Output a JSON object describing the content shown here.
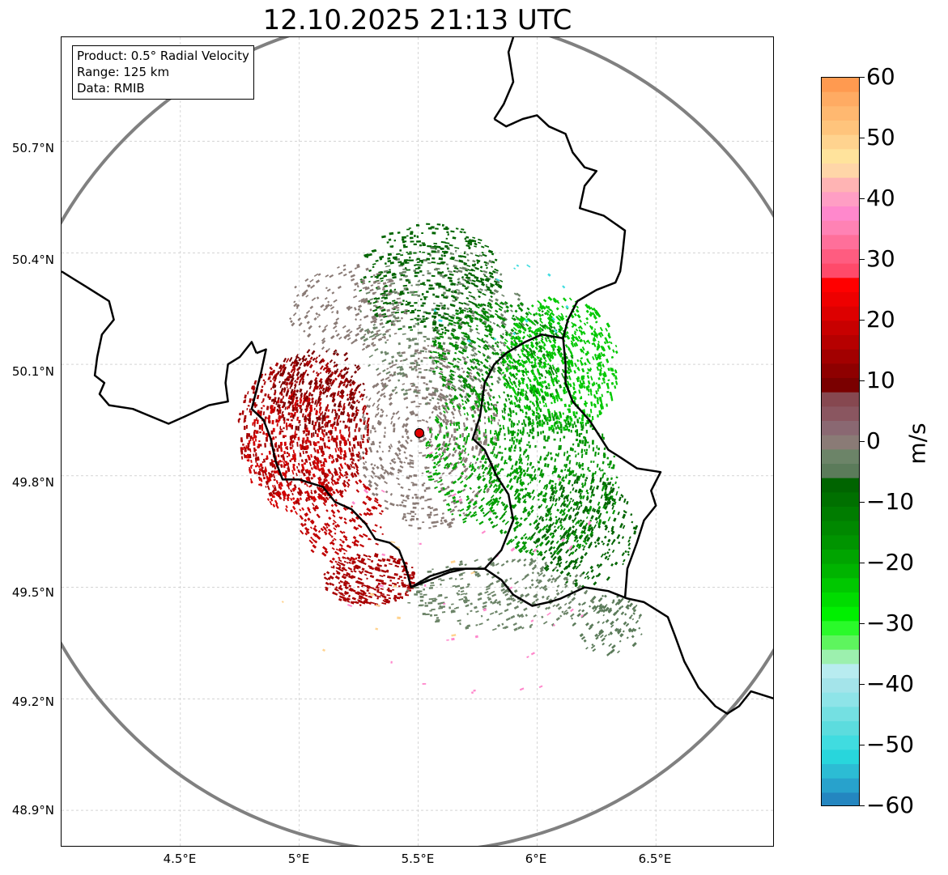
{
  "title": "12.10.2025 21:13 UTC",
  "info": {
    "product": "Product: 0.5° Radial Velocity",
    "range": "Range: 125 km",
    "data": "Data: RMIB"
  },
  "lat_labels": [
    "50.7°N",
    "50.4°N",
    "50.1°N",
    "49.8°N",
    "49.5°N",
    "49.2°N",
    "48.9°N"
  ],
  "lon_labels": [
    "4.5°E",
    "5°E",
    "5.5°E",
    "6°E",
    "6.5°E"
  ],
  "colorbar": {
    "unit": "m/s",
    "tick_labels": [
      "60",
      "50",
      "40",
      "30",
      "20",
      "10",
      "0",
      "−10",
      "−20",
      "−30",
      "−40",
      "−50",
      "−60"
    ],
    "vmin": -60,
    "vmax": 60,
    "band_colors": [
      "#ff9a50",
      "#ffab63",
      "#ffb870",
      "#ffc47c",
      "#ffd38f",
      "#ffe39c",
      "#ffd6a8",
      "#ffb4b4",
      "#ff9ec4",
      "#ff88cc",
      "#ff82b4",
      "#ff6f9a",
      "#ff5c80",
      "#ff4a6a",
      "#ff0000",
      "#ee0000",
      "#dd0000",
      "#c80000",
      "#b60000",
      "#a20000",
      "#8e0000",
      "#7a0000",
      "#864850",
      "#8a5660",
      "#8a6872",
      "#8a7b76",
      "#6c8468",
      "#5b7b5a",
      "#006400",
      "#007000",
      "#007c00",
      "#008800",
      "#009400",
      "#00a400",
      "#00b400",
      "#00c800",
      "#00dc00",
      "#00f000",
      "#2afa2a",
      "#5ef55e",
      "#9cf0ae",
      "#b8ecf0",
      "#a4e4ea",
      "#8ee4e8",
      "#74e0e2",
      "#5cdcde",
      "#40dce0",
      "#28d6dc",
      "#2cbcd4",
      "#28a2cc",
      "#2486c0"
    ]
  },
  "map_data": {
    "lon_range": [
      4.0,
      7.0
    ],
    "lat_range": [
      48.8,
      50.98
    ],
    "radar_site": {
      "lon": 5.505,
      "lat": 49.915
    },
    "range_ring_km": 125,
    "gridlines": {
      "lon": [
        4.5,
        5.0,
        5.5,
        6.0,
        6.5
      ],
      "lat": [
        48.9,
        49.2,
        49.5,
        49.8,
        50.1,
        50.4,
        50.7
      ]
    },
    "colors": {
      "border": "#000000",
      "ring": "#808080",
      "grid": "#bbbbbb",
      "site": "#e00000"
    },
    "borders": [
      [
        [
          4.0,
          50.35
        ],
        [
          4.05,
          50.33
        ],
        [
          4.1,
          50.31
        ],
        [
          4.15,
          50.29
        ],
        [
          4.2,
          50.27
        ],
        [
          4.22,
          50.22
        ],
        [
          4.17,
          50.18
        ],
        [
          4.15,
          50.12
        ],
        [
          4.14,
          50.07
        ],
        [
          4.18,
          50.05
        ],
        [
          4.16,
          50.02
        ],
        [
          4.2,
          49.99
        ],
        [
          4.3,
          49.98
        ],
        [
          4.45,
          49.94
        ],
        [
          4.52,
          49.96
        ],
        [
          4.62,
          49.99
        ],
        [
          4.7,
          50.0
        ],
        [
          4.69,
          50.05
        ],
        [
          4.7,
          50.1
        ],
        [
          4.75,
          50.12
        ],
        [
          4.8,
          50.16
        ],
        [
          4.82,
          50.13
        ]
      ],
      [
        [
          4.82,
          50.13
        ],
        [
          4.86,
          50.14
        ],
        [
          4.84,
          50.08
        ],
        [
          4.82,
          50.03
        ],
        [
          4.8,
          49.98
        ],
        [
          4.85,
          49.95
        ],
        [
          4.88,
          49.9
        ],
        [
          4.9,
          49.84
        ],
        [
          4.93,
          49.79
        ],
        [
          5.0,
          49.79
        ],
        [
          5.1,
          49.77
        ],
        [
          5.15,
          49.73
        ],
        [
          5.22,
          49.71
        ],
        [
          5.28,
          49.67
        ],
        [
          5.32,
          49.63
        ],
        [
          5.38,
          49.62
        ],
        [
          5.42,
          49.6
        ],
        [
          5.45,
          49.55
        ],
        [
          5.47,
          49.5
        ],
        [
          5.55,
          49.52
        ],
        [
          5.63,
          49.54
        ],
        [
          5.7,
          49.55
        ],
        [
          5.78,
          49.55
        ],
        [
          5.85,
          49.52
        ],
        [
          5.9,
          49.48
        ],
        [
          5.98,
          49.45
        ],
        [
          6.05,
          49.46
        ],
        [
          6.1,
          49.47
        ],
        [
          6.2,
          49.5
        ],
        [
          6.3,
          49.49
        ],
        [
          6.38,
          49.47
        ],
        [
          6.45,
          49.46
        ],
        [
          6.5,
          49.44
        ],
        [
          6.55,
          49.42
        ],
        [
          6.58,
          49.37
        ],
        [
          6.62,
          49.3
        ],
        [
          6.68,
          49.23
        ],
        [
          6.75,
          49.18
        ],
        [
          6.8,
          49.16
        ],
        [
          6.85,
          49.18
        ],
        [
          6.9,
          49.22
        ],
        [
          6.95,
          49.21
        ],
        [
          7.0,
          49.2
        ]
      ],
      [
        [
          5.82,
          50.76
        ],
        [
          5.86,
          50.8
        ],
        [
          5.9,
          50.86
        ],
        [
          5.88,
          50.94
        ],
        [
          5.9,
          50.98
        ]
      ],
      [
        [
          5.82,
          50.76
        ],
        [
          5.87,
          50.74
        ],
        [
          5.94,
          50.76
        ],
        [
          6.0,
          50.77
        ],
        [
          6.05,
          50.74
        ],
        [
          6.12,
          50.72
        ],
        [
          6.15,
          50.67
        ],
        [
          6.2,
          50.63
        ],
        [
          6.25,
          50.62
        ],
        [
          6.2,
          50.58
        ],
        [
          6.18,
          50.52
        ],
        [
          6.28,
          50.5
        ],
        [
          6.37,
          50.46
        ],
        [
          6.36,
          50.4
        ],
        [
          6.35,
          50.35
        ],
        [
          6.33,
          50.32
        ],
        [
          6.25,
          50.3
        ],
        [
          6.17,
          50.27
        ],
        [
          6.13,
          50.22
        ],
        [
          6.11,
          50.17
        ],
        [
          6.12,
          50.1
        ],
        [
          6.12,
          50.05
        ],
        [
          6.15,
          50.0
        ],
        [
          6.22,
          49.95
        ],
        [
          6.3,
          49.87
        ],
        [
          6.35,
          49.85
        ],
        [
          6.42,
          49.82
        ],
        [
          6.52,
          49.81
        ],
        [
          6.48,
          49.76
        ],
        [
          6.5,
          49.72
        ],
        [
          6.45,
          49.68
        ],
        [
          6.42,
          49.62
        ],
        [
          6.38,
          49.55
        ],
        [
          6.37,
          49.47
        ]
      ],
      [
        [
          5.47,
          49.5
        ],
        [
          5.55,
          49.53
        ],
        [
          5.65,
          49.55
        ],
        [
          5.78,
          49.55
        ],
        [
          5.85,
          49.6
        ],
        [
          5.9,
          49.68
        ],
        [
          5.88,
          49.75
        ],
        [
          5.83,
          49.8
        ],
        [
          5.78,
          49.87
        ],
        [
          5.73,
          49.9
        ],
        [
          5.76,
          49.96
        ],
        [
          5.78,
          50.05
        ],
        [
          5.82,
          50.1
        ],
        [
          5.87,
          50.13
        ],
        [
          5.95,
          50.16
        ],
        [
          6.02,
          50.18
        ],
        [
          6.11,
          50.17
        ]
      ]
    ],
    "echoes": [
      {
        "color": "#a80000",
        "lon": 5.02,
        "lat": 49.92,
        "rlon": 0.28,
        "rlat": 0.2,
        "n": 750
      },
      {
        "color": "#d40000",
        "lon": 4.98,
        "lat": 49.86,
        "rlon": 0.22,
        "rlat": 0.16,
        "n": 320
      },
      {
        "color": "#7a0000",
        "lon": 5.08,
        "lat": 50.03,
        "rlon": 0.2,
        "rlat": 0.12,
        "n": 220
      },
      {
        "color": "#a80000",
        "lon": 5.3,
        "lat": 49.52,
        "rlon": 0.2,
        "rlat": 0.07,
        "n": 300
      },
      {
        "color": "#c00000",
        "lon": 5.18,
        "lat": 49.68,
        "rlon": 0.18,
        "rlat": 0.12,
        "n": 200
      },
      {
        "color": "#8a7b76",
        "lon": 5.55,
        "lat": 49.9,
        "rlon": 0.3,
        "rlat": 0.25,
        "n": 600
      },
      {
        "color": "#6c8468",
        "lon": 5.6,
        "lat": 50.2,
        "rlon": 0.35,
        "rlat": 0.22,
        "n": 420
      },
      {
        "color": "#6c8468",
        "lon": 5.85,
        "lat": 49.48,
        "rlon": 0.4,
        "rlat": 0.1,
        "n": 300
      },
      {
        "color": "#006400",
        "lon": 5.55,
        "lat": 50.33,
        "rlon": 0.3,
        "rlat": 0.15,
        "n": 450
      },
      {
        "color": "#008800",
        "lon": 5.85,
        "lat": 50.12,
        "rlon": 0.3,
        "rlat": 0.15,
        "n": 500
      },
      {
        "color": "#00c800",
        "lon": 6.1,
        "lat": 50.1,
        "rlon": 0.25,
        "rlat": 0.18,
        "n": 700
      },
      {
        "color": "#009400",
        "lon": 6.05,
        "lat": 49.78,
        "rlon": 0.3,
        "rlat": 0.2,
        "n": 650
      },
      {
        "color": "#006400",
        "lon": 6.2,
        "lat": 49.65,
        "rlon": 0.22,
        "rlat": 0.15,
        "n": 300
      },
      {
        "color": "#00a400",
        "lon": 5.75,
        "lat": 49.85,
        "rlon": 0.22,
        "rlat": 0.18,
        "n": 300
      },
      {
        "color": "#5b7b5a",
        "lon": 6.3,
        "lat": 49.4,
        "rlon": 0.15,
        "rlat": 0.08,
        "n": 120
      },
      {
        "color": "#ff88cc",
        "lon": 5.7,
        "lat": 49.55,
        "rlon": 0.55,
        "rlat": 0.4,
        "n": 40
      },
      {
        "color": "#40dce0",
        "lon": 5.9,
        "lat": 50.25,
        "rlon": 0.4,
        "rlat": 0.12,
        "n": 15
      },
      {
        "color": "#ffd38f",
        "lon": 5.3,
        "lat": 49.5,
        "rlon": 0.5,
        "rlat": 0.2,
        "n": 12
      },
      {
        "color": "#8a7b76",
        "lon": 5.2,
        "lat": 50.25,
        "rlon": 0.25,
        "rlat": 0.12,
        "n": 200
      }
    ]
  }
}
